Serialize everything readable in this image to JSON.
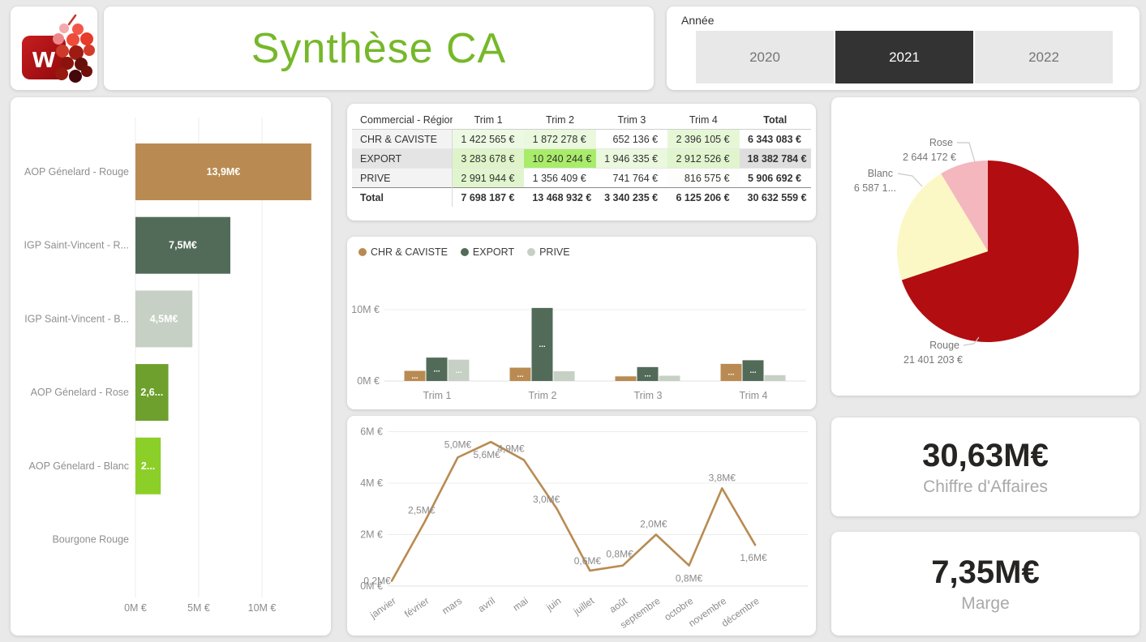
{
  "header": {
    "title": "Synthèse CA",
    "title_color": "#76b82a"
  },
  "logo": {
    "letter": "w"
  },
  "slicer": {
    "label": "Année",
    "options": [
      {
        "label": "2020",
        "selected": false
      },
      {
        "label": "2021",
        "selected": true
      },
      {
        "label": "2022",
        "selected": false
      }
    ],
    "selected_bg": "#333333",
    "unselected_bg": "#e8e8e8"
  },
  "kpis": [
    {
      "value": "30,63M€",
      "label": "Chiffre d'Affaires"
    },
    {
      "value": "7,35M€",
      "label": "Marge"
    }
  ],
  "chart_data": [
    {
      "id": "product_bar",
      "type": "bar",
      "orientation": "horizontal",
      "categories": [
        "AOP Génelard - Rouge",
        "IGP Saint-Vincent - R...",
        "IGP Saint-Vincent - B...",
        "AOP Génelard - Rose",
        "AOP Génelard - Blanc",
        "Bourgone Rouge"
      ],
      "values": [
        13.9,
        7.5,
        4.5,
        2.6,
        2.0,
        0
      ],
      "bar_labels": [
        "13,9M€",
        "7,5M€",
        "4,5M€",
        "2,6...",
        "2...",
        ""
      ],
      "bar_colors": [
        "#b98b52",
        "#526b59",
        "#c6d0c4",
        "#6da02c",
        "#8ccf29",
        "#cccccc"
      ],
      "xticks": [
        "0M €",
        "5M €",
        "10M €"
      ],
      "xtick_values": [
        0,
        5,
        10
      ],
      "xlim": [
        0,
        14.5
      ],
      "grid": true
    },
    {
      "id": "matrix",
      "type": "table",
      "corner": "Commercial - Région",
      "columns": [
        "Trim 1",
        "Trim 2",
        "Trim 3",
        "Trim 4",
        "Total"
      ],
      "rows": [
        {
          "label": "CHR & CAVISTE",
          "label_bg": "#f3f3f3",
          "cells": [
            {
              "v": "1 422 565 €",
              "bg": "#edf9e2"
            },
            {
              "v": "1 872 278 €",
              "bg": "#eaf8dd"
            },
            {
              "v": "652 136 €",
              "bg": "#ffffff"
            },
            {
              "v": "2 396 105 €",
              "bg": "#e6f7d6"
            }
          ],
          "total": "6 343 083 €",
          "total_bg": "#ffffff"
        },
        {
          "label": "EXPORT",
          "label_bg": "#e4e4e4",
          "cells": [
            {
              "v": "3 283 678 €",
              "bg": "#def4c8"
            },
            {
              "v": "10 240 244 €",
              "bg": "#a9ec69"
            },
            {
              "v": "1 946 335 €",
              "bg": "#eaf8dd"
            },
            {
              "v": "2 912 526 €",
              "bg": "#e0f5cd"
            }
          ],
          "total": "18 382 784 €",
          "total_bg": "#dedede"
        },
        {
          "label": "PRIVE",
          "label_bg": "#f3f3f3",
          "cells": [
            {
              "v": "2 991 944 €",
              "bg": "#e0f5cd"
            },
            {
              "v": "1 356 409 €",
              "bg": "#ffffff"
            },
            {
              "v": "741 764 €",
              "bg": "#ffffff"
            },
            {
              "v": "816 575 €",
              "bg": "#fdfefb"
            }
          ],
          "total": "5 906 692 €",
          "total_bg": "#ffffff"
        }
      ],
      "total_row": {
        "label": "Total",
        "cells": [
          "7 698 187 €",
          "13 468 932 €",
          "3 340 235 €",
          "6 125 206 €"
        ],
        "total": "30 632 559 €"
      }
    },
    {
      "id": "quarter_bar",
      "type": "bar",
      "categories": [
        "Trim 1",
        "Trim 2",
        "Trim 3",
        "Trim 4"
      ],
      "series": [
        {
          "name": "CHR & CAVISTE",
          "color": "#b98b52",
          "values": [
            1.42,
            1.87,
            0.65,
            2.4
          ]
        },
        {
          "name": "EXPORT",
          "color": "#526b59",
          "values": [
            3.28,
            10.24,
            1.95,
            2.91
          ]
        },
        {
          "name": "PRIVE",
          "color": "#c6d0c4",
          "values": [
            2.99,
            1.36,
            0.74,
            0.82
          ]
        }
      ],
      "bar_label": "...",
      "yticks": [
        "0M €",
        "10M €"
      ],
      "ytick_values": [
        0,
        10
      ],
      "ylim": [
        0,
        11
      ],
      "legend_position": "top",
      "grid": true
    },
    {
      "id": "monthly_line",
      "type": "line",
      "x": [
        "janvier",
        "février",
        "mars",
        "avril",
        "mai",
        "juin",
        "juillet",
        "août",
        "septembre",
        "octobre",
        "novembre",
        "décembre"
      ],
      "values": [
        0.2,
        2.5,
        5.0,
        5.6,
        4.9,
        3.0,
        0.6,
        0.8,
        2.0,
        0.8,
        3.8,
        1.6
      ],
      "point_labels": [
        "0,2M€",
        "2,5M€",
        "5,0M€",
        "5,6M€",
        "4,9M€",
        "3,0M€",
        "0,6M€",
        "0,8M€",
        "2,0M€",
        "0,8M€",
        "3,8M€",
        "1,6M€"
      ],
      "color": "#b98b52",
      "yticks": [
        "0M €",
        "2M €",
        "4M €",
        "6M €"
      ],
      "ytick_values": [
        0,
        2,
        4,
        6
      ],
      "ylim": [
        0,
        6
      ],
      "grid": true
    },
    {
      "id": "color_pie",
      "type": "pie",
      "slices": [
        {
          "name": "Rouge",
          "value": 21401203,
          "label": "21 401 203 €",
          "color": "#b20d11"
        },
        {
          "name": "Blanc",
          "value": 6587184,
          "label": "6 587 1...",
          "color": "#fbf8c5"
        },
        {
          "name": "Rose",
          "value": 2644172,
          "label": "2 644 172 €",
          "color": "#f4b7be"
        }
      ],
      "start_angle_deg": 0,
      "direction": "clockwise"
    }
  ]
}
